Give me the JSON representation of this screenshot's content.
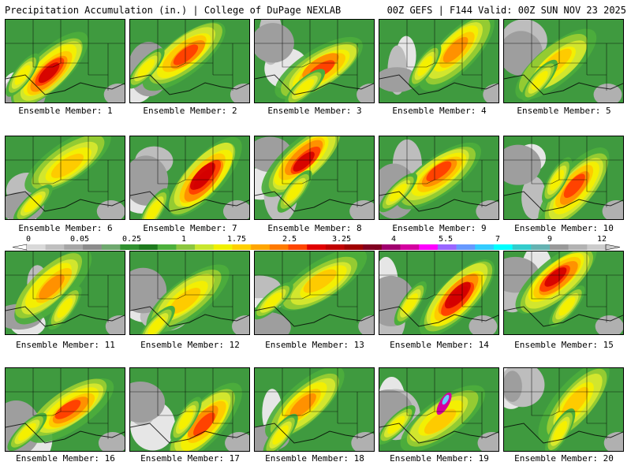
{
  "header": {
    "left": "Precipitation Accumulation (in.) | College of DuPage NEXLAB",
    "right": "00Z GEFS | F144 Valid: 00Z SUN NOV 23 2025"
  },
  "caption_prefix": "Ensemble Member: ",
  "members": [
    "1",
    "2",
    "3",
    "4",
    "5",
    "6",
    "7",
    "8",
    "9",
    "10",
    "11",
    "12",
    "13",
    "14",
    "15",
    "16",
    "17",
    "18",
    "19",
    "20"
  ],
  "colorbar": {
    "labels": [
      "0",
      "0.05",
      "0.25",
      "1",
      "1.75",
      "2.5",
      "3.25",
      "4",
      "5.5",
      "7",
      "9",
      "12"
    ],
    "colors": [
      "#d9d9d9",
      "#bfbfbf",
      "#a6a6a6",
      "#8c8c8c",
      "#6fa86f",
      "#2f8f2f",
      "#1e7a1e",
      "#4caf3c",
      "#8cc63f",
      "#c8e62e",
      "#f0f000",
      "#ffd000",
      "#ffa500",
      "#ff7a00",
      "#ff4500",
      "#e00000",
      "#c00000",
      "#a00000",
      "#800020",
      "#a0006e",
      "#d400a0",
      "#ff00ff",
      "#9966ff",
      "#6699ff",
      "#33ccff",
      "#00ffff",
      "#33cccc",
      "#66b2b2",
      "#999999",
      "#b3b3b3",
      "#cccccc"
    ]
  }
}
